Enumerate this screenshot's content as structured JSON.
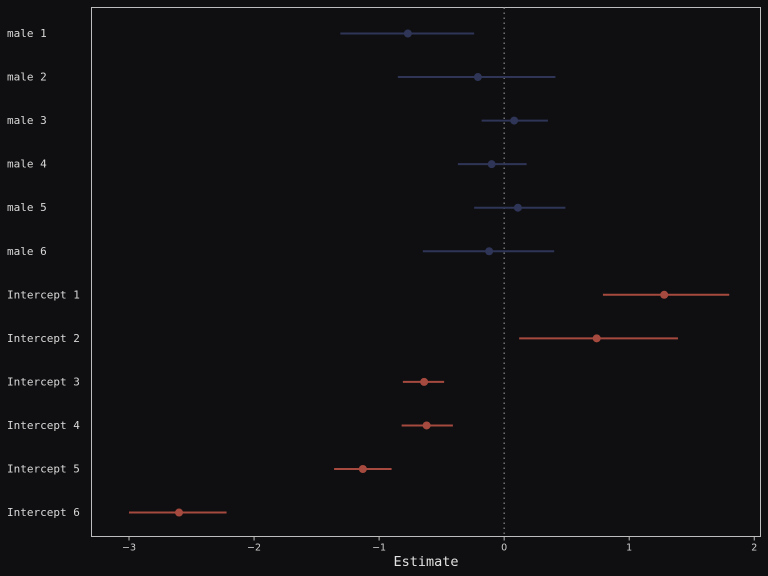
{
  "chart_data": {
    "type": "scatter",
    "subtype": "coefficient-plot",
    "xlabel": "Estimate",
    "xlim": [
      -3.3,
      2.05
    ],
    "x_ticks": [
      -3,
      -2,
      -1,
      0,
      1,
      2
    ],
    "x_tick_labels": [
      "−3",
      "−2",
      "−1",
      "0",
      "1",
      "2"
    ],
    "reference_line_x": 0,
    "grid": false,
    "colors": {
      "background": "#0f0f11",
      "frame": "#bdbdbd",
      "reference_line": "#8a8a8a",
      "male": "#2e3557",
      "intercept": "#a64a3f"
    },
    "rows": [
      {
        "label": "male 1",
        "group": "male",
        "estimate": -0.77,
        "lower": -1.31,
        "upper": -0.24
      },
      {
        "label": "male 2",
        "group": "male",
        "estimate": -0.21,
        "lower": -0.85,
        "upper": 0.41
      },
      {
        "label": "male 3",
        "group": "male",
        "estimate": 0.08,
        "lower": -0.18,
        "upper": 0.35
      },
      {
        "label": "male 4",
        "group": "male",
        "estimate": -0.1,
        "lower": -0.37,
        "upper": 0.18
      },
      {
        "label": "male 5",
        "group": "male",
        "estimate": 0.11,
        "lower": -0.24,
        "upper": 0.49
      },
      {
        "label": "male 6",
        "group": "male",
        "estimate": -0.12,
        "lower": -0.65,
        "upper": 0.4
      },
      {
        "label": "Intercept 1",
        "group": "intercept",
        "estimate": 1.28,
        "lower": 0.79,
        "upper": 1.8
      },
      {
        "label": "Intercept 2",
        "group": "intercept",
        "estimate": 0.74,
        "lower": 0.12,
        "upper": 1.39
      },
      {
        "label": "Intercept 3",
        "group": "intercept",
        "estimate": -0.64,
        "lower": -0.81,
        "upper": -0.48
      },
      {
        "label": "Intercept 4",
        "group": "intercept",
        "estimate": -0.62,
        "lower": -0.82,
        "upper": -0.41
      },
      {
        "label": "Intercept 5",
        "group": "intercept",
        "estimate": -1.13,
        "lower": -1.36,
        "upper": -0.9
      },
      {
        "label": "Intercept 6",
        "group": "intercept",
        "estimate": -2.6,
        "lower": -3.0,
        "upper": -2.22
      }
    ]
  }
}
